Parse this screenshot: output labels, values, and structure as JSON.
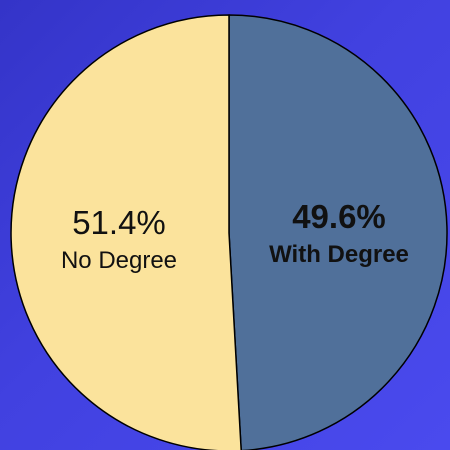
{
  "chart_data": {
    "type": "pie",
    "slices": [
      {
        "name": "With Degree",
        "value": 49.6,
        "percent_label": "49.6%",
        "category_label": "With Degree",
        "color": "#50709a",
        "bold": true
      },
      {
        "name": "No Degree",
        "value": 51.4,
        "percent_label": "51.4%",
        "category_label": "No Degree",
        "color": "#fbe39c",
        "bold": false
      }
    ],
    "start_angle": "top",
    "direction": "clockwise",
    "outline_color": "#000000"
  },
  "colors": {
    "background": "#4040de"
  }
}
